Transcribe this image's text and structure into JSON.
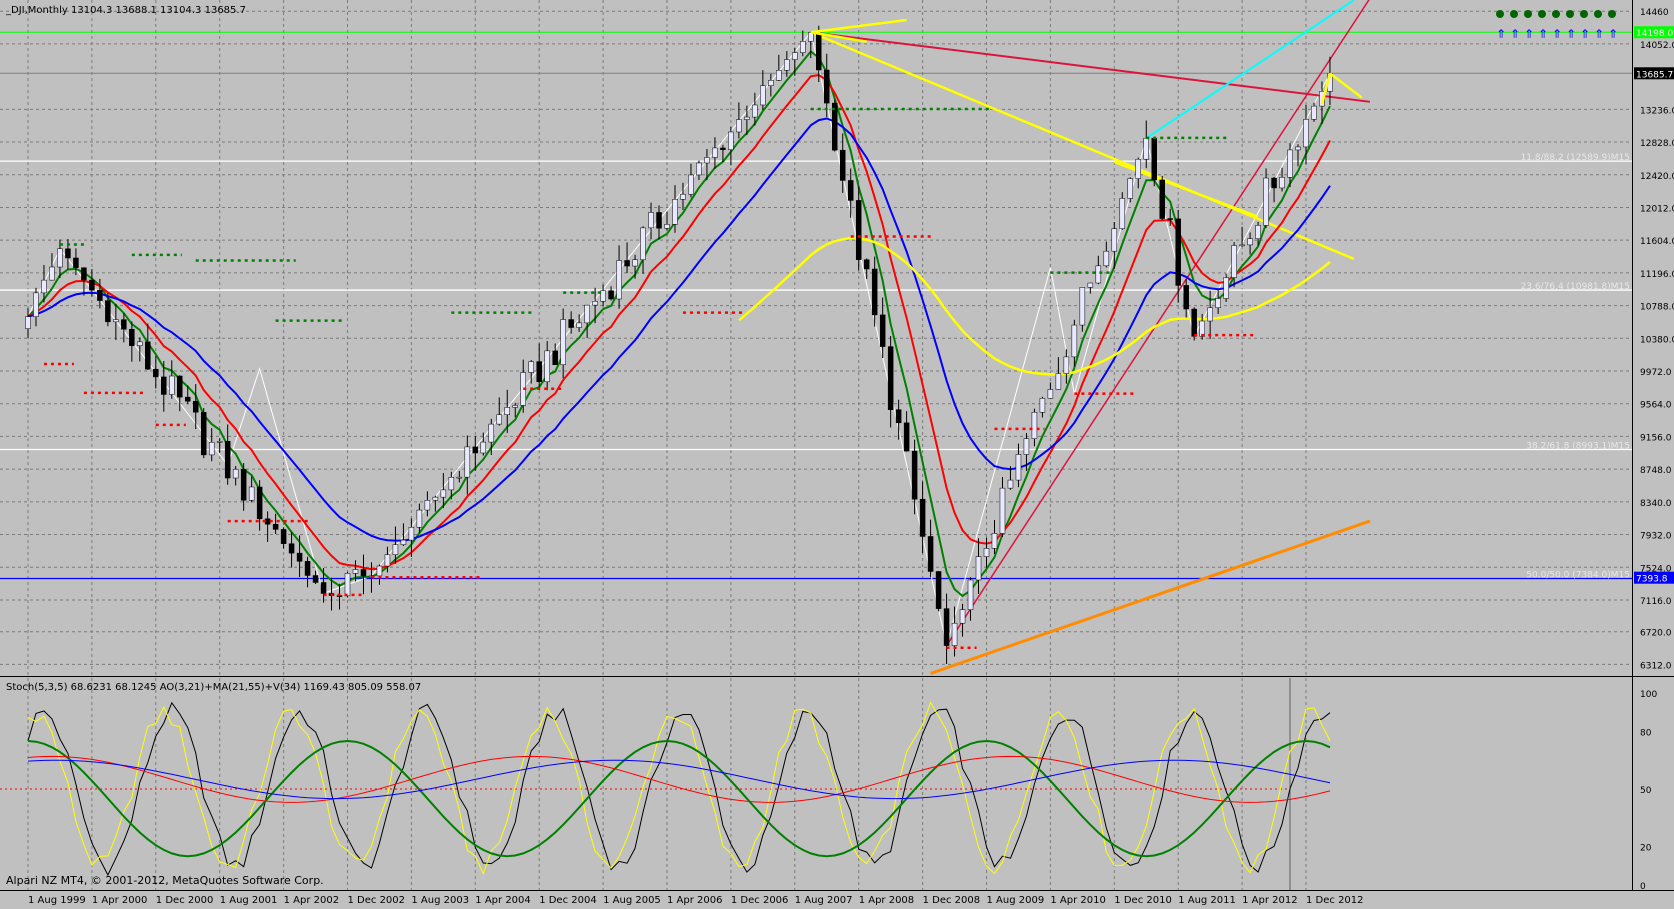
{
  "symbol_header": "_DJI,Monthly  13104.3 13688.1 13104.3 13685.7",
  "indicator_header": "Stoch(5,3,5) 68.6231 68.1245  AO(3,21)+MA(21,55)+V(34) 1169.43 805.09 558.07",
  "footer": "Alpari NZ MT4, © 2001-2012, MetaQuotes Software Corp.",
  "colors": {
    "background": "#c0c0c0",
    "grid": "#7a7a7a",
    "bull_candle": "#e8e8ff",
    "bear_candle": "#000000",
    "ma_fast": "#008000",
    "ma_mid": "#ff0000",
    "ma_slow": "#0000ff",
    "ma_long": "#ffff00",
    "zigzag": "#ffffff",
    "channel": "#00ffff",
    "arrows": "#ffff00",
    "trendline_red": "#dc143c",
    "trendline_orange": "#ff8c00",
    "horizontal_green": "#00ff00",
    "fractal_dots": "#008000",
    "fractal_dots_low": "#ff0000",
    "stoch_main": "#000000",
    "stoch_signal": "#ffff00",
    "ao_line": "#008000",
    "ao_ma1": "#ff0000",
    "ao_ma2": "#0000ff",
    "status_dot": "#006400",
    "status_arrow": "#0000ff"
  },
  "chart_data": [
    {
      "type": "candlestick",
      "timeframe": "Monthly",
      "y_range": [
        6180,
        14600
      ],
      "x_range": [
        "1999-08",
        "2013-08"
      ],
      "y_tick_labels": [
        "14460",
        "14052.0",
        "13236.0",
        "12828.0",
        "12420.0",
        "12012.0",
        "11604.0",
        "11196.0",
        "10788.0",
        "10380.0",
        "9972.0",
        "9564.0",
        "9156.0",
        "8748.0",
        "8340.0",
        "7932.0",
        "7524.0",
        "7116.0",
        "6720.0",
        "6312.0"
      ],
      "x_tick_labels": [
        "1 Aug 1999",
        "1 Apr 2000",
        "1 Dec 2000",
        "1 Aug 2001",
        "1 Apr 2002",
        "1 Dec 2002",
        "1 Aug 2003",
        "1 Apr 2004",
        "1 Dec 2004",
        "1 Aug 2005",
        "1 Apr 2006",
        "1 Dec 2006",
        "1 Aug 2007",
        "1 Apr 2008",
        "1 Dec 2008",
        "1 Aug 2009",
        "1 Apr 2010",
        "1 Dec 2010",
        "1 Aug 2011",
        "1 Apr 2012",
        "1 Dec 2012"
      ],
      "price_tags": [
        {
          "label": "14198.0",
          "value": 14198,
          "color": "#00ff00"
        },
        {
          "label": "13685.7",
          "value": 13685.7,
          "color": "#000000"
        },
        {
          "label": "7393.8",
          "value": 7393.8,
          "color": "#0000ff"
        }
      ],
      "levels": [
        {
          "label": "11.8/88.2 (12589.9)M15",
          "value": 12590,
          "color": "#ffffff"
        },
        {
          "label": "23.6/76.4 (10981.8)M15",
          "value": 10982,
          "color": "#ffffff"
        },
        {
          "label": "38.2/61.8 (8993.1)M15",
          "value": 8993,
          "color": "#ffffff"
        },
        {
          "label": "50.0/50.0 (7384.0)M15",
          "value": 7384,
          "color": "#0000ff"
        }
      ],
      "key_points": [
        {
          "date": "1999-12",
          "price": 11497
        },
        {
          "date": "2002-09",
          "price": 7197
        },
        {
          "date": "2003-03",
          "price": 7416
        },
        {
          "date": "2007-10",
          "price": 14198
        },
        {
          "date": "2009-03",
          "price": 6547
        },
        {
          "date": "2011-04",
          "price": 12876
        },
        {
          "date": "2011-10",
          "price": 10404
        },
        {
          "date": "2013-03",
          "price": 13685.7
        }
      ]
    },
    {
      "type": "line",
      "title": "Stoch(5,3,5) 68.6231 68.1245  AO(3,21)+MA(21,55)+V(34) 1169.43 805.09 558.07",
      "y_range": [
        0,
        100
      ],
      "y_tick_labels": [
        "100",
        "80",
        "50",
        "20",
        "0"
      ],
      "series": [
        {
          "name": "Stoch(5,3,5)",
          "value": 68.6231
        },
        {
          "name": "Signal",
          "value": 68.1245
        },
        {
          "name": "AO(3,21)",
          "value": 1169.43
        },
        {
          "name": "MA(21)",
          "value": 805.09
        },
        {
          "name": "MA(55)",
          "value": 558.07
        }
      ]
    }
  ]
}
